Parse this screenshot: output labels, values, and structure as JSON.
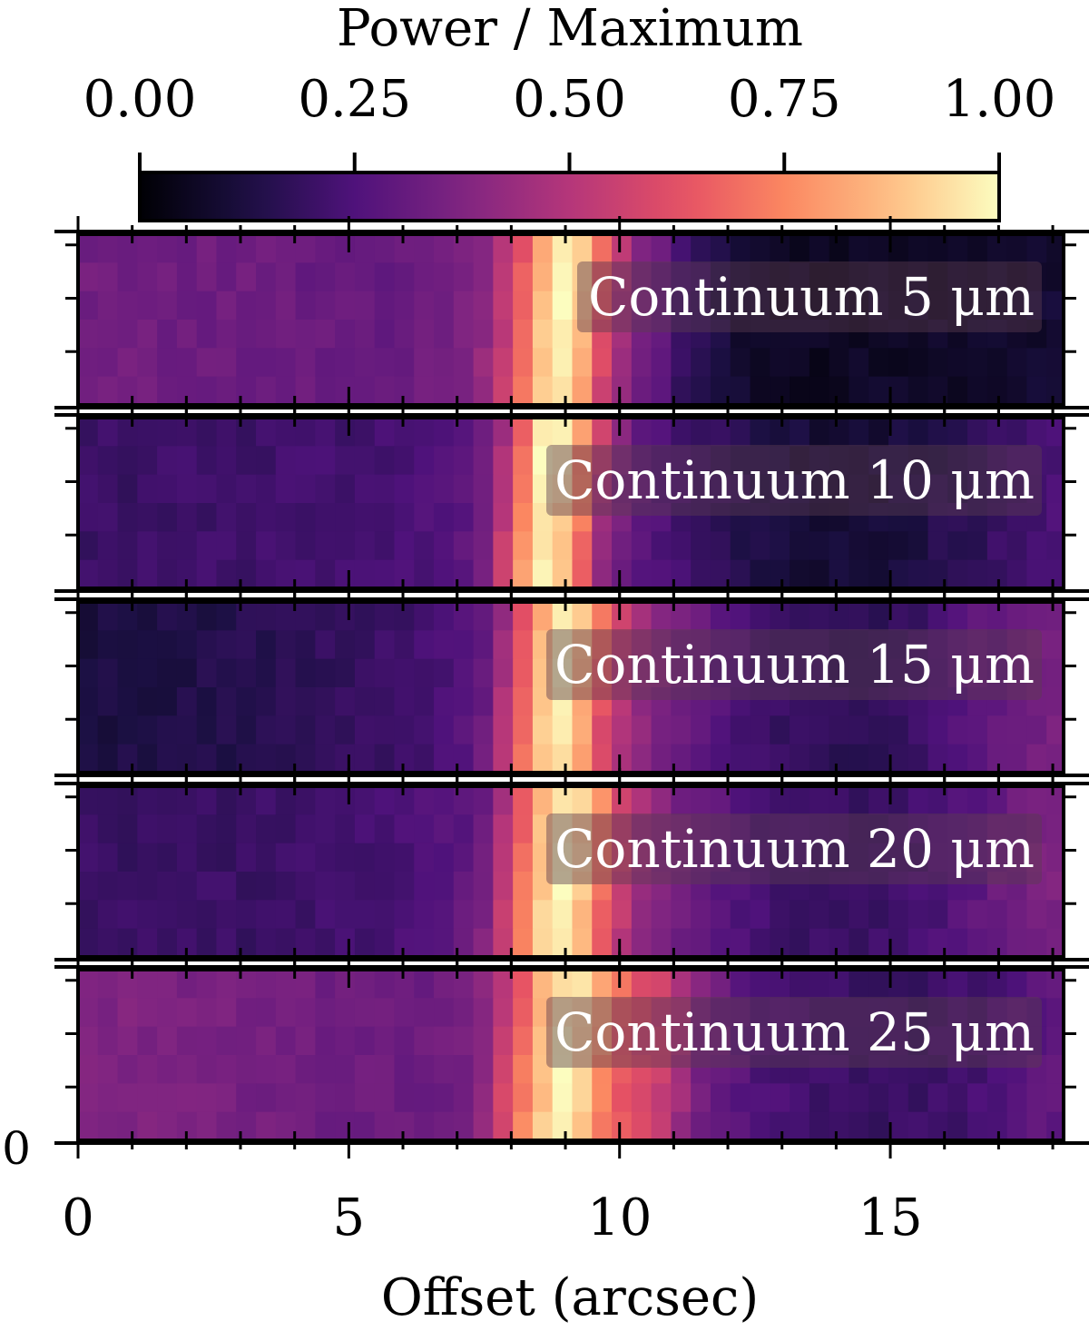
{
  "chart_data": {
    "type": "heatmap",
    "colormap": "magma",
    "colorbar": {
      "label": "Power / Maximum",
      "range": [
        0.0,
        1.0
      ],
      "ticks": [
        0.0,
        0.25,
        0.5,
        0.75,
        1.0
      ],
      "tick_labels": [
        "0.00",
        "0.25",
        "0.50",
        "0.75",
        "1.00"
      ],
      "location": "top"
    },
    "xlabel": "Offset (arcsec)",
    "xlim": [
      0,
      18.2
    ],
    "xticks": [
      0,
      5,
      10,
      15
    ],
    "xtick_labels": [
      "0",
      "5",
      "10",
      "15"
    ],
    "ytick_labels_visible": [
      "0"
    ],
    "pixel_size_arcsec": 0.365,
    "rows_per_panel": 6,
    "panels": [
      {
        "label": "Continuum 5 μm",
        "peak_x": 8.9,
        "profile": [
          [
            0.0,
            0.34
          ],
          [
            1.0,
            0.34
          ],
          [
            2.0,
            0.33
          ],
          [
            3.0,
            0.33
          ],
          [
            4.0,
            0.32
          ],
          [
            5.0,
            0.31
          ],
          [
            6.0,
            0.31
          ],
          [
            7.0,
            0.35
          ],
          [
            7.5,
            0.42
          ],
          [
            8.0,
            0.58
          ],
          [
            8.5,
            0.85
          ],
          [
            8.9,
            1.0
          ],
          [
            9.3,
            0.88
          ],
          [
            9.7,
            0.6
          ],
          [
            10.2,
            0.38
          ],
          [
            10.7,
            0.3
          ],
          [
            11.2,
            0.2
          ],
          [
            12.0,
            0.1
          ],
          [
            13.0,
            0.06
          ],
          [
            14.0,
            0.06
          ],
          [
            15.0,
            0.07
          ],
          [
            16.0,
            0.07
          ],
          [
            17.0,
            0.08
          ],
          [
            18.2,
            0.1
          ]
        ]
      },
      {
        "label": "Continuum 10 μm",
        "peak_x": 8.5,
        "profile": [
          [
            0.0,
            0.2
          ],
          [
            1.0,
            0.2
          ],
          [
            2.0,
            0.21
          ],
          [
            3.0,
            0.21
          ],
          [
            4.0,
            0.22
          ],
          [
            5.0,
            0.22
          ],
          [
            6.0,
            0.23
          ],
          [
            7.0,
            0.27
          ],
          [
            7.5,
            0.33
          ],
          [
            8.0,
            0.6
          ],
          [
            8.5,
            0.98
          ],
          [
            8.9,
            0.95
          ],
          [
            9.3,
            0.72
          ],
          [
            9.7,
            0.45
          ],
          [
            10.2,
            0.3
          ],
          [
            10.7,
            0.25
          ],
          [
            11.5,
            0.2
          ],
          [
            12.5,
            0.14
          ],
          [
            13.5,
            0.1
          ],
          [
            14.5,
            0.1
          ],
          [
            15.5,
            0.13
          ],
          [
            16.5,
            0.17
          ],
          [
            17.5,
            0.22
          ],
          [
            18.2,
            0.25
          ]
        ]
      },
      {
        "label": "Continuum 15 μm",
        "peak_x": 8.9,
        "profile": [
          [
            0.0,
            0.12
          ],
          [
            1.0,
            0.13
          ],
          [
            2.0,
            0.14
          ],
          [
            3.0,
            0.15
          ],
          [
            4.0,
            0.17
          ],
          [
            5.0,
            0.19
          ],
          [
            6.0,
            0.21
          ],
          [
            7.0,
            0.25
          ],
          [
            7.5,
            0.32
          ],
          [
            8.0,
            0.55
          ],
          [
            8.5,
            0.85
          ],
          [
            8.9,
            1.0
          ],
          [
            9.3,
            0.85
          ],
          [
            9.7,
            0.62
          ],
          [
            10.2,
            0.45
          ],
          [
            10.7,
            0.38
          ],
          [
            11.5,
            0.3
          ],
          [
            12.5,
            0.22
          ],
          [
            13.5,
            0.18
          ],
          [
            14.5,
            0.17
          ],
          [
            15.5,
            0.2
          ],
          [
            16.5,
            0.28
          ],
          [
            17.5,
            0.34
          ],
          [
            18.2,
            0.36
          ]
        ]
      },
      {
        "label": "Continuum 20 μm",
        "peak_x": 8.9,
        "profile": [
          [
            0.0,
            0.2
          ],
          [
            1.0,
            0.2
          ],
          [
            2.0,
            0.2
          ],
          [
            3.0,
            0.2
          ],
          [
            4.0,
            0.21
          ],
          [
            5.0,
            0.22
          ],
          [
            6.0,
            0.24
          ],
          [
            7.0,
            0.28
          ],
          [
            7.5,
            0.35
          ],
          [
            8.0,
            0.6
          ],
          [
            8.5,
            0.88
          ],
          [
            8.9,
            1.0
          ],
          [
            9.3,
            0.9
          ],
          [
            9.7,
            0.68
          ],
          [
            10.2,
            0.48
          ],
          [
            10.7,
            0.38
          ],
          [
            11.5,
            0.3
          ],
          [
            12.5,
            0.24
          ],
          [
            13.5,
            0.2
          ],
          [
            14.5,
            0.2
          ],
          [
            15.5,
            0.22
          ],
          [
            16.5,
            0.28
          ],
          [
            17.5,
            0.35
          ],
          [
            18.2,
            0.37
          ]
        ]
      },
      {
        "label": "Continuum 25 μm",
        "peak_x": 9.0,
        "profile": [
          [
            0.0,
            0.38
          ],
          [
            1.0,
            0.37
          ],
          [
            2.0,
            0.36
          ],
          [
            3.0,
            0.35
          ],
          [
            4.0,
            0.34
          ],
          [
            5.0,
            0.33
          ],
          [
            6.0,
            0.32
          ],
          [
            7.0,
            0.34
          ],
          [
            7.5,
            0.4
          ],
          [
            8.0,
            0.62
          ],
          [
            8.5,
            0.85
          ],
          [
            9.0,
            1.0
          ],
          [
            9.4,
            0.9
          ],
          [
            9.8,
            0.72
          ],
          [
            10.3,
            0.6
          ],
          [
            10.8,
            0.55
          ],
          [
            11.5,
            0.35
          ],
          [
            12.5,
            0.25
          ],
          [
            13.5,
            0.22
          ],
          [
            14.5,
            0.2
          ],
          [
            15.5,
            0.2
          ],
          [
            16.5,
            0.22
          ],
          [
            17.5,
            0.27
          ],
          [
            18.2,
            0.3
          ]
        ]
      }
    ]
  }
}
